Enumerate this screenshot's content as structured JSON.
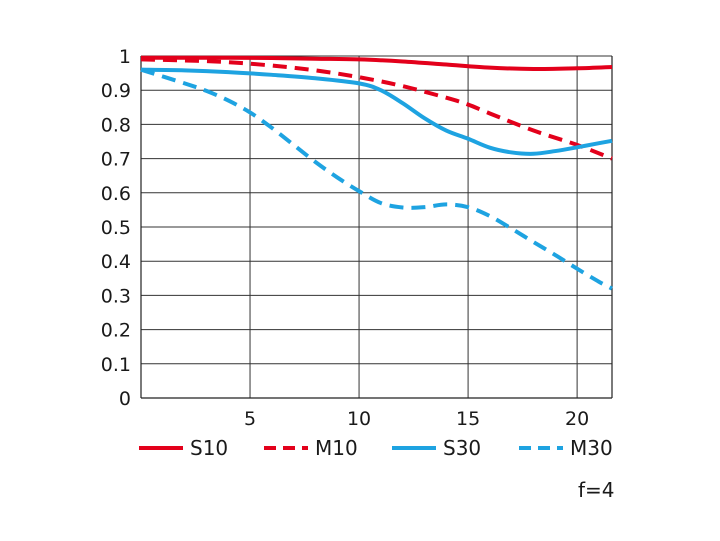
{
  "chart_data": {
    "type": "line",
    "title": "",
    "xlabel": "",
    "ylabel": "",
    "xlim": [
      0,
      21.6
    ],
    "ylim": [
      0,
      1
    ],
    "x_ticks": [
      5,
      10,
      15,
      20
    ],
    "x_tick_labels": [
      "5",
      "10",
      "15",
      "20"
    ],
    "y_ticks": [
      0,
      0.1,
      0.2,
      0.3,
      0.4,
      0.5,
      0.6,
      0.7,
      0.8,
      0.9,
      1
    ],
    "y_tick_labels": [
      "0",
      "0.1",
      "0.2",
      "0.3",
      "0.4",
      "0.5",
      "0.6",
      "0.7",
      "0.8",
      "0.9",
      "1"
    ],
    "grid": true,
    "legend_position": "bottom",
    "annotation": "f=4",
    "series": [
      {
        "name": "S10",
        "color": "#e3001b",
        "dash": "solid",
        "points": [
          [
            0,
            0.995
          ],
          [
            2,
            0.995
          ],
          [
            4,
            0.995
          ],
          [
            6,
            0.994
          ],
          [
            8,
            0.992
          ],
          [
            10,
            0.99
          ],
          [
            12,
            0.984
          ],
          [
            14,
            0.975
          ],
          [
            16,
            0.966
          ],
          [
            18,
            0.962
          ],
          [
            20,
            0.964
          ],
          [
            21.6,
            0.968
          ]
        ]
      },
      {
        "name": "M10",
        "color": "#e3001b",
        "dash": "dashed",
        "points": [
          [
            0,
            0.99
          ],
          [
            2,
            0.987
          ],
          [
            4,
            0.982
          ],
          [
            6,
            0.972
          ],
          [
            8,
            0.958
          ],
          [
            10,
            0.938
          ],
          [
            12,
            0.912
          ],
          [
            14,
            0.878
          ],
          [
            15,
            0.858
          ],
          [
            16,
            0.832
          ],
          [
            18,
            0.782
          ],
          [
            20,
            0.74
          ],
          [
            21.6,
            0.7
          ]
        ]
      },
      {
        "name": "S30",
        "color": "#1ea3e1",
        "dash": "solid",
        "points": [
          [
            0,
            0.96
          ],
          [
            2,
            0.958
          ],
          [
            4,
            0.953
          ],
          [
            6,
            0.945
          ],
          [
            8,
            0.935
          ],
          [
            10,
            0.92
          ],
          [
            11,
            0.9
          ],
          [
            12,
            0.862
          ],
          [
            13,
            0.818
          ],
          [
            14,
            0.782
          ],
          [
            15,
            0.758
          ],
          [
            16,
            0.732
          ],
          [
            17,
            0.718
          ],
          [
            18,
            0.714
          ],
          [
            19,
            0.722
          ],
          [
            20,
            0.733
          ],
          [
            21,
            0.745
          ],
          [
            21.6,
            0.752
          ]
        ]
      },
      {
        "name": "M30",
        "color": "#1ea3e1",
        "dash": "dashed",
        "points": [
          [
            0,
            0.96
          ],
          [
            2,
            0.92
          ],
          [
            3,
            0.898
          ],
          [
            4,
            0.87
          ],
          [
            5,
            0.835
          ],
          [
            6,
            0.79
          ],
          [
            7,
            0.74
          ],
          [
            8,
            0.69
          ],
          [
            9,
            0.645
          ],
          [
            10,
            0.605
          ],
          [
            11,
            0.57
          ],
          [
            12,
            0.557
          ],
          [
            13,
            0.558
          ],
          [
            14,
            0.566
          ],
          [
            15,
            0.558
          ],
          [
            16,
            0.532
          ],
          [
            17,
            0.495
          ],
          [
            18,
            0.456
          ],
          [
            19,
            0.418
          ],
          [
            20,
            0.378
          ],
          [
            21,
            0.34
          ],
          [
            21.6,
            0.32
          ]
        ]
      }
    ]
  }
}
